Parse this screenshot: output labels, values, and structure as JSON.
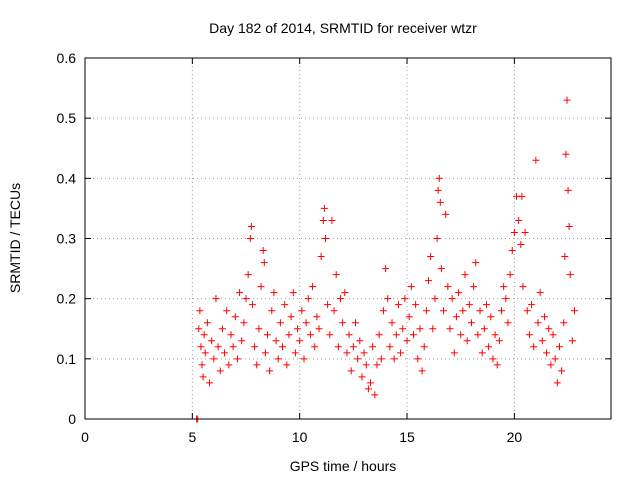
{
  "chart_data": {
    "type": "scatter",
    "title": "Day 182 of 2014, SRMTID for receiver wtzr",
    "xlabel": "GPS time / hours",
    "ylabel": "SRMTID / TECUs",
    "xlim": [
      0,
      24.5
    ],
    "ylim": [
      0,
      0.6
    ],
    "x_ticks": [
      0,
      5,
      10,
      15,
      20
    ],
    "x_tick_labels": [
      "0",
      "5",
      "10",
      "15",
      "20"
    ],
    "y_ticks": [
      0,
      0.1,
      0.2,
      0.3,
      0.4,
      0.5,
      0.6
    ],
    "y_tick_labels": [
      "0",
      "0.1",
      "0.2",
      "0.3",
      "0.4",
      "0.5",
      "0.6"
    ],
    "grid": true,
    "marker": "+",
    "color": "#ff0000",
    "points": [
      [
        5.2,
        0.0
      ],
      [
        5.25,
        0.0
      ],
      [
        5.3,
        0.15
      ],
      [
        5.35,
        0.18
      ],
      [
        5.4,
        0.12
      ],
      [
        5.45,
        0.09
      ],
      [
        5.5,
        0.07
      ],
      [
        5.55,
        0.14
      ],
      [
        5.6,
        0.11
      ],
      [
        5.7,
        0.16
      ],
      [
        5.8,
        0.06
      ],
      [
        5.9,
        0.13
      ],
      [
        6.0,
        0.1
      ],
      [
        6.1,
        0.2
      ],
      [
        6.2,
        0.12
      ],
      [
        6.3,
        0.08
      ],
      [
        6.4,
        0.15
      ],
      [
        6.5,
        0.11
      ],
      [
        6.6,
        0.18
      ],
      [
        6.7,
        0.09
      ],
      [
        6.8,
        0.14
      ],
      [
        6.9,
        0.12
      ],
      [
        7.0,
        0.17
      ],
      [
        7.1,
        0.1
      ],
      [
        7.2,
        0.21
      ],
      [
        7.3,
        0.13
      ],
      [
        7.4,
        0.16
      ],
      [
        7.5,
        0.2
      ],
      [
        7.6,
        0.24
      ],
      [
        7.7,
        0.3
      ],
      [
        7.75,
        0.32
      ],
      [
        7.8,
        0.19
      ],
      [
        7.9,
        0.12
      ],
      [
        8.0,
        0.09
      ],
      [
        8.1,
        0.15
      ],
      [
        8.2,
        0.22
      ],
      [
        8.3,
        0.28
      ],
      [
        8.35,
        0.26
      ],
      [
        8.4,
        0.11
      ],
      [
        8.5,
        0.14
      ],
      [
        8.6,
        0.08
      ],
      [
        8.7,
        0.18
      ],
      [
        8.8,
        0.21
      ],
      [
        8.9,
        0.13
      ],
      [
        9.0,
        0.1
      ],
      [
        9.1,
        0.16
      ],
      [
        9.2,
        0.12
      ],
      [
        9.3,
        0.19
      ],
      [
        9.4,
        0.09
      ],
      [
        9.5,
        0.14
      ],
      [
        9.6,
        0.17
      ],
      [
        9.7,
        0.21
      ],
      [
        9.8,
        0.11
      ],
      [
        9.9,
        0.15
      ],
      [
        10.0,
        0.13
      ],
      [
        10.1,
        0.18
      ],
      [
        10.2,
        0.1
      ],
      [
        10.3,
        0.16
      ],
      [
        10.4,
        0.2
      ],
      [
        10.5,
        0.14
      ],
      [
        10.6,
        0.22
      ],
      [
        10.7,
        0.12
      ],
      [
        10.8,
        0.17
      ],
      [
        10.9,
        0.15
      ],
      [
        11.0,
        0.27
      ],
      [
        11.1,
        0.33
      ],
      [
        11.15,
        0.35
      ],
      [
        11.2,
        0.3
      ],
      [
        11.3,
        0.19
      ],
      [
        11.4,
        0.14
      ],
      [
        11.5,
        0.33
      ],
      [
        11.6,
        0.18
      ],
      [
        11.7,
        0.24
      ],
      [
        11.8,
        0.12
      ],
      [
        11.9,
        0.2
      ],
      [
        12.0,
        0.16
      ],
      [
        12.1,
        0.21
      ],
      [
        12.2,
        0.11
      ],
      [
        12.3,
        0.14
      ],
      [
        12.4,
        0.08
      ],
      [
        12.5,
        0.12
      ],
      [
        12.6,
        0.16
      ],
      [
        12.7,
        0.1
      ],
      [
        12.8,
        0.13
      ],
      [
        12.9,
        0.07
      ],
      [
        13.0,
        0.11
      ],
      [
        13.1,
        0.09
      ],
      [
        13.2,
        0.05
      ],
      [
        13.3,
        0.06
      ],
      [
        13.4,
        0.12
      ],
      [
        13.5,
        0.04
      ],
      [
        13.6,
        0.09
      ],
      [
        13.7,
        0.14
      ],
      [
        13.8,
        0.1
      ],
      [
        13.9,
        0.18
      ],
      [
        14.0,
        0.25
      ],
      [
        14.1,
        0.2
      ],
      [
        14.2,
        0.12
      ],
      [
        14.3,
        0.16
      ],
      [
        14.4,
        0.1
      ],
      [
        14.5,
        0.14
      ],
      [
        14.6,
        0.19
      ],
      [
        14.7,
        0.11
      ],
      [
        14.8,
        0.15
      ],
      [
        14.9,
        0.2
      ],
      [
        15.0,
        0.13
      ],
      [
        15.1,
        0.17
      ],
      [
        15.2,
        0.22
      ],
      [
        15.3,
        0.14
      ],
      [
        15.4,
        0.19
      ],
      [
        15.5,
        0.1
      ],
      [
        15.6,
        0.15
      ],
      [
        15.7,
        0.08
      ],
      [
        15.8,
        0.12
      ],
      [
        15.9,
        0.18
      ],
      [
        16.0,
        0.23
      ],
      [
        16.1,
        0.27
      ],
      [
        16.2,
        0.15
      ],
      [
        16.3,
        0.2
      ],
      [
        16.4,
        0.3
      ],
      [
        16.45,
        0.38
      ],
      [
        16.5,
        0.4
      ],
      [
        16.55,
        0.36
      ],
      [
        16.6,
        0.25
      ],
      [
        16.7,
        0.18
      ],
      [
        16.8,
        0.34
      ],
      [
        16.9,
        0.22
      ],
      [
        17.0,
        0.15
      ],
      [
        17.1,
        0.2
      ],
      [
        17.2,
        0.11
      ],
      [
        17.3,
        0.17
      ],
      [
        17.4,
        0.21
      ],
      [
        17.5,
        0.14
      ],
      [
        17.6,
        0.18
      ],
      [
        17.7,
        0.24
      ],
      [
        17.8,
        0.13
      ],
      [
        17.9,
        0.19
      ],
      [
        18.0,
        0.16
      ],
      [
        18.1,
        0.22
      ],
      [
        18.2,
        0.26
      ],
      [
        18.3,
        0.14
      ],
      [
        18.4,
        0.18
      ],
      [
        18.5,
        0.11
      ],
      [
        18.6,
        0.15
      ],
      [
        18.7,
        0.19
      ],
      [
        18.8,
        0.12
      ],
      [
        18.9,
        0.17
      ],
      [
        19.0,
        0.1
      ],
      [
        19.1,
        0.14
      ],
      [
        19.2,
        0.09
      ],
      [
        19.3,
        0.13
      ],
      [
        19.4,
        0.18
      ],
      [
        19.5,
        0.22
      ],
      [
        19.6,
        0.2
      ],
      [
        19.7,
        0.16
      ],
      [
        19.8,
        0.24
      ],
      [
        19.9,
        0.28
      ],
      [
        20.0,
        0.31
      ],
      [
        20.1,
        0.37
      ],
      [
        20.2,
        0.33
      ],
      [
        20.3,
        0.29
      ],
      [
        20.35,
        0.37
      ],
      [
        20.4,
        0.22
      ],
      [
        20.5,
        0.31
      ],
      [
        20.6,
        0.18
      ],
      [
        20.7,
        0.14
      ],
      [
        20.8,
        0.19
      ],
      [
        20.9,
        0.12
      ],
      [
        21.0,
        0.43
      ],
      [
        21.1,
        0.16
      ],
      [
        21.2,
        0.21
      ],
      [
        21.3,
        0.13
      ],
      [
        21.4,
        0.17
      ],
      [
        21.5,
        0.11
      ],
      [
        21.6,
        0.15
      ],
      [
        21.7,
        0.09
      ],
      [
        21.8,
        0.14
      ],
      [
        21.9,
        0.1
      ],
      [
        22.0,
        0.06
      ],
      [
        22.1,
        0.12
      ],
      [
        22.2,
        0.08
      ],
      [
        22.3,
        0.16
      ],
      [
        22.35,
        0.27
      ],
      [
        22.4,
        0.44
      ],
      [
        22.45,
        0.53
      ],
      [
        22.5,
        0.38
      ],
      [
        22.55,
        0.32
      ],
      [
        22.6,
        0.24
      ],
      [
        22.7,
        0.13
      ],
      [
        22.8,
        0.18
      ]
    ]
  }
}
